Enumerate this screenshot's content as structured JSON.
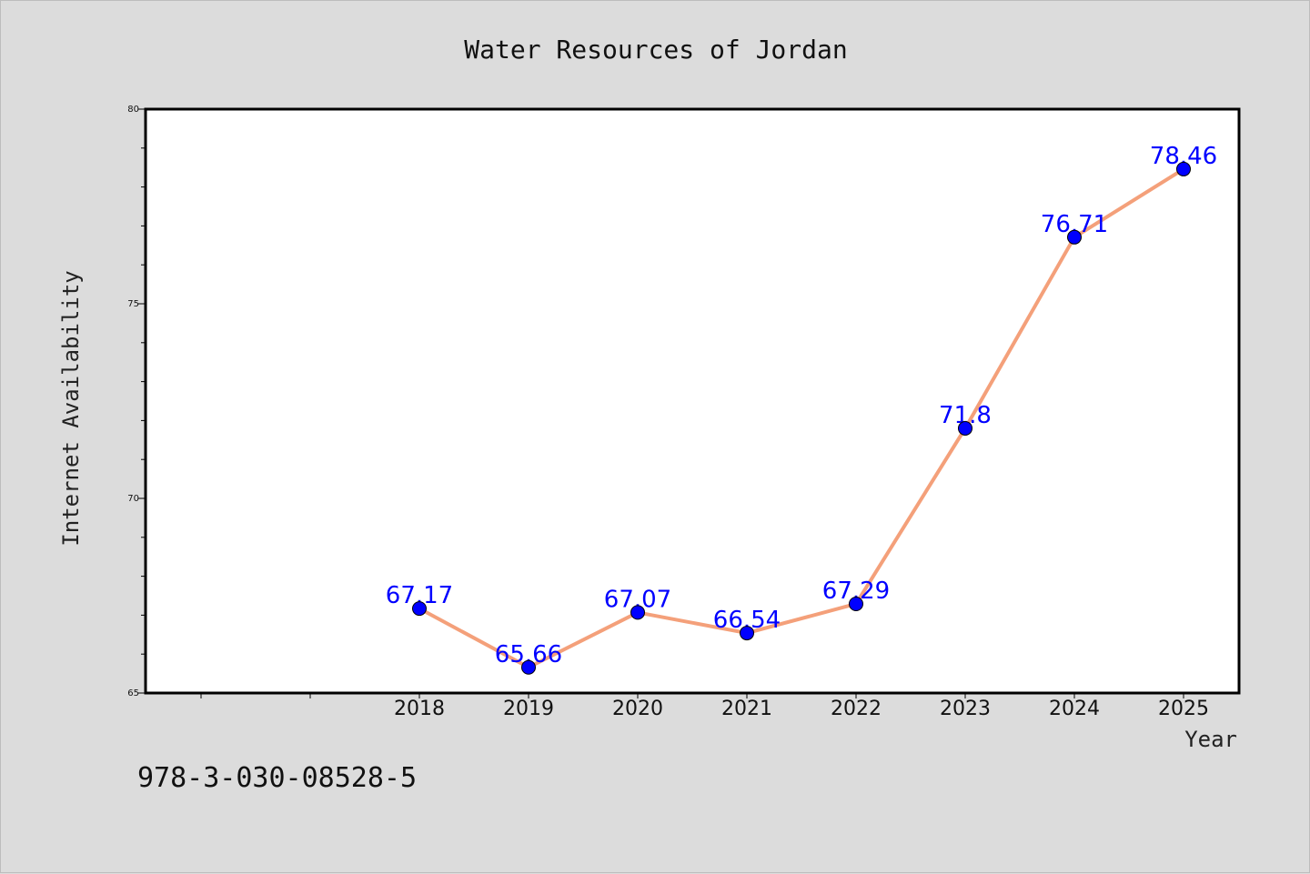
{
  "chart_data": {
    "type": "line",
    "title": "Water Resources of Jordan",
    "xlabel": "Year",
    "ylabel": "Internet Availability",
    "categories": [
      "2018",
      "2019",
      "2020",
      "2021",
      "2022",
      "2023",
      "2024",
      "2025"
    ],
    "series": [
      {
        "values": [
          67.17,
          65.66,
          67.07,
          66.54,
          67.29,
          71.8,
          76.71,
          78.46
        ]
      }
    ],
    "data_labels": [
      "67.17",
      "65.66",
      "67.07",
      "66.54",
      "67.29",
      "71.8",
      "76.71",
      "78.46"
    ],
    "ylim": [
      65,
      80
    ],
    "yticks": [
      "65",
      "70",
      "75",
      "80"
    ],
    "grid": false,
    "line_color": "#f4a07a",
    "marker_color": "#0000ff",
    "label_color": "#0000ff"
  },
  "footer": {
    "isbn": "978-3-030-08528-5"
  }
}
